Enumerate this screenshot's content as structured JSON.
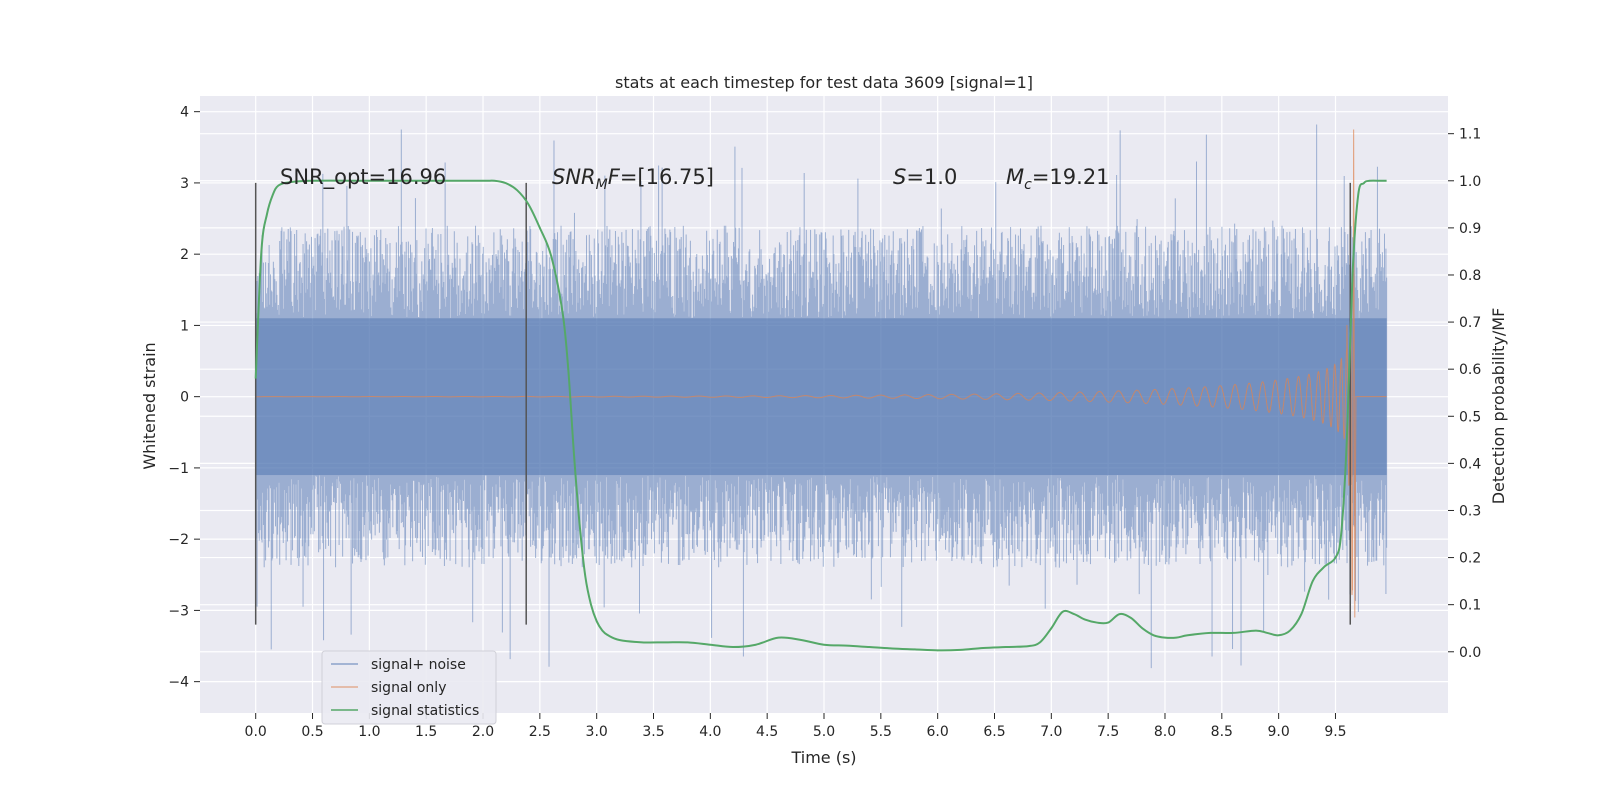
{
  "chart_data": {
    "type": "line",
    "title": "stats at each timestep for test data 3609 [signal=1]",
    "xlabel": "Time (s)",
    "ylabel": "Whitened strain",
    "y2label": "Detection probability/MF",
    "xlim": [
      -0.49,
      10.49
    ],
    "ylim": [
      -4.44,
      4.22
    ],
    "y2lim": [
      -0.13,
      1.18
    ],
    "x_ticks": [
      0.0,
      0.5,
      1.0,
      1.5,
      2.0,
      2.5,
      3.0,
      3.5,
      4.0,
      4.5,
      5.0,
      5.5,
      6.0,
      6.5,
      7.0,
      7.5,
      8.0,
      8.5,
      9.0,
      9.5
    ],
    "x_tick_labels": [
      "0.0",
      "0.5",
      "1.0",
      "1.5",
      "2.0",
      "2.5",
      "3.0",
      "3.5",
      "4.0",
      "4.5",
      "5.0",
      "5.5",
      "6.0",
      "6.5",
      "7.0",
      "7.5",
      "8.0",
      "8.5",
      "9.0",
      "9.5"
    ],
    "y_ticks": [
      -4,
      -3,
      -2,
      -1,
      0,
      1,
      2,
      3,
      4
    ],
    "y_tick_labels": [
      "−4",
      "−3",
      "−2",
      "−1",
      "0",
      "1",
      "2",
      "3",
      "4"
    ],
    "y2_ticks": [
      0.0,
      0.1,
      0.2,
      0.3,
      0.4,
      0.5,
      0.6,
      0.7,
      0.8,
      0.9,
      1.0,
      1.1
    ],
    "y2_tick_labels": [
      "0.0",
      "0.1",
      "0.2",
      "0.3",
      "0.4",
      "0.5",
      "0.6",
      "0.7",
      "0.8",
      "0.9",
      "1.0",
      "1.1"
    ],
    "grid": true,
    "legend_position": "lower-left",
    "annotations": {
      "snr_opt": "SNR_opt=16.96",
      "snr_mf_sym": "SNR",
      "snr_mf_sub": "M",
      "snr_mf_f": "F",
      "snr_mf_val": "=[16.75]",
      "s_sym": "S",
      "s_val": "=1.0",
      "mc_sym": "M",
      "mc_sub": "c",
      "mc_val": "=19.21"
    },
    "vertical_markers": [
      {
        "x": 0.0,
        "color": "#555555"
      },
      {
        "x": 2.38,
        "color": "#555555"
      },
      {
        "x": 9.63,
        "color": "#555555"
      }
    ],
    "marker_y_range": [
      -3.2,
      3.0
    ],
    "noise_envelope": {
      "t": [
        0.0,
        9.95
      ],
      "core_amplitude": 1.1,
      "typical_peak": 2.4,
      "extreme_peak": 3.85
    },
    "series": [
      {
        "name": "signal+ noise",
        "color": "#4c72b0",
        "kind": "noisy-strain",
        "t_range": [
          0.0,
          9.95
        ]
      },
      {
        "name": "signal only",
        "color": "#dd8452",
        "kind": "chirp",
        "t_range": [
          0.0,
          9.65
        ],
        "merger_time": 9.65,
        "peak_amplitude": 3.75
      },
      {
        "name": "signal statistics",
        "color": "#55a868",
        "kind": "probability",
        "x": [
          0.0,
          0.05,
          0.1,
          0.15,
          0.2,
          0.3,
          0.5,
          1.0,
          1.5,
          2.0,
          2.1,
          2.2,
          2.3,
          2.4,
          2.5,
          2.6,
          2.7,
          2.75,
          2.8,
          2.85,
          2.9,
          2.95,
          3.0,
          3.05,
          3.1,
          3.2,
          3.4,
          3.6,
          3.8,
          4.0,
          4.2,
          4.4,
          4.6,
          4.8,
          5.0,
          5.2,
          5.4,
          5.6,
          5.8,
          6.0,
          6.2,
          6.4,
          6.6,
          6.8,
          6.9,
          7.0,
          7.1,
          7.2,
          7.3,
          7.4,
          7.5,
          7.6,
          7.7,
          7.8,
          7.9,
          8.0,
          8.1,
          8.2,
          8.4,
          8.6,
          8.8,
          8.9,
          9.0,
          9.1,
          9.2,
          9.3,
          9.4,
          9.5,
          9.55,
          9.6,
          9.65,
          9.7,
          9.75,
          9.8,
          9.9,
          9.95
        ],
        "values": [
          0.58,
          0.85,
          0.93,
          0.97,
          0.99,
          0.997,
          1.0,
          1.0,
          1.0,
          1.0,
          1.0,
          0.995,
          0.98,
          0.95,
          0.9,
          0.84,
          0.72,
          0.6,
          0.42,
          0.27,
          0.16,
          0.1,
          0.065,
          0.045,
          0.035,
          0.025,
          0.02,
          0.02,
          0.02,
          0.015,
          0.01,
          0.015,
          0.03,
          0.025,
          0.015,
          0.013,
          0.01,
          0.007,
          0.005,
          0.003,
          0.004,
          0.008,
          0.01,
          0.012,
          0.02,
          0.05,
          0.085,
          0.08,
          0.068,
          0.062,
          0.062,
          0.08,
          0.072,
          0.05,
          0.035,
          0.03,
          0.03,
          0.035,
          0.04,
          0.04,
          0.045,
          0.04,
          0.035,
          0.045,
          0.08,
          0.15,
          0.18,
          0.2,
          0.25,
          0.45,
          0.8,
          0.97,
          0.995,
          1.0,
          1.0,
          1.0
        ]
      }
    ]
  }
}
